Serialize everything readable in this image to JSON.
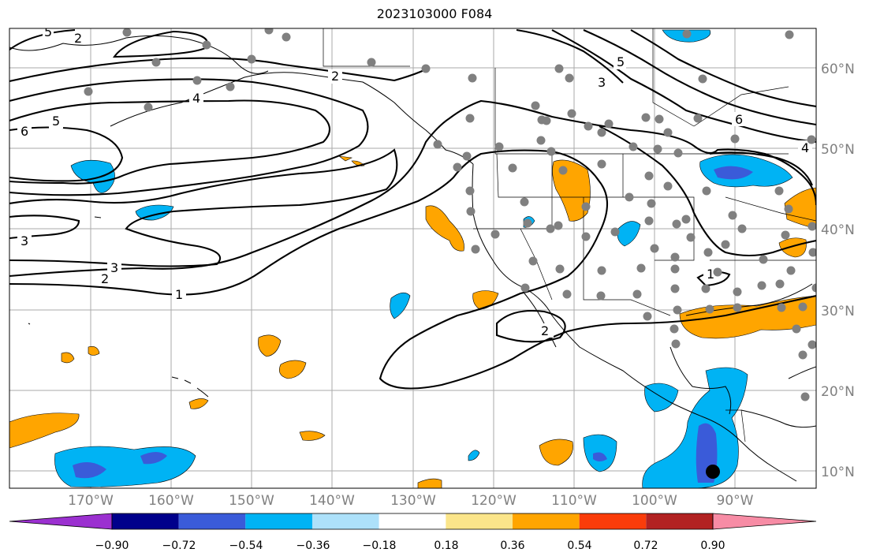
{
  "title": "2023103000 F084",
  "colors": {
    "land_border": "#000000",
    "grid": "#aaaaaa",
    "station_dot": "#808080",
    "marker": "#000000"
  },
  "longitude_labels": [
    "170°W",
    "160°W",
    "150°W",
    "140°W",
    "130°W",
    "120°W",
    "110°W",
    "100°W",
    "90°W"
  ],
  "latitude_labels": [
    "60°N",
    "50°N",
    "40°N",
    "30°N",
    "20°N",
    "10°N"
  ],
  "contour_labels": [
    "5",
    "6",
    "5",
    "6",
    "4",
    "3",
    "2",
    "1",
    "2",
    "3",
    "5",
    "4",
    "3",
    "2",
    "1",
    "2"
  ],
  "colorbar": {
    "colors": [
      "#9b30d0",
      "#00008b",
      "#3a5bd9",
      "#00b3f4",
      "#ade1fa",
      "#ffffff",
      "#fbe58a",
      "#ffa500",
      "#fa3c0a",
      "#b22222",
      "#f78ca5"
    ],
    "tick_labels": [
      "−0.90",
      "−0.72",
      "−0.54",
      "−0.36",
      "−0.18",
      "0.18",
      "0.36",
      "0.54",
      "0.72",
      "0.90"
    ]
  }
}
